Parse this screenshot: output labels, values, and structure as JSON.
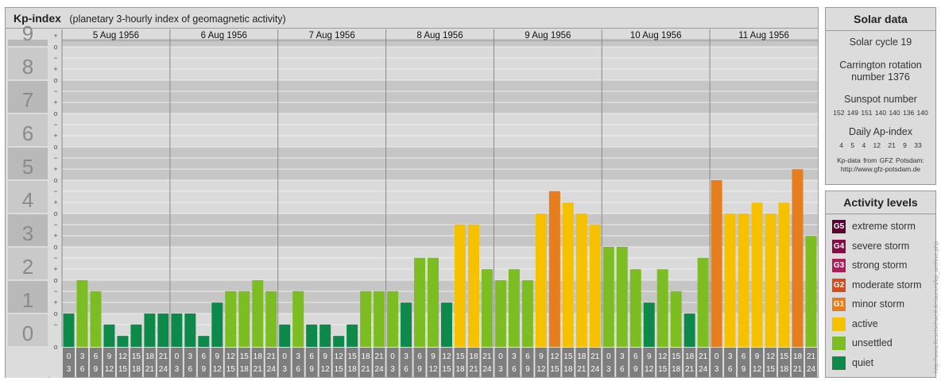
{
  "title": {
    "main": "Kp-index",
    "subtitle": "(planetary 3-hourly index of geomagnetic activity)"
  },
  "solar": {
    "title": "Solar data",
    "cycle": "Solar cycle 19",
    "carrington_line1": "Carrington rotation",
    "carrington_line2": "number 1376",
    "sunspot_label": "Sunspot number",
    "sunspot_values": "152 149 151 140 140 136 140",
    "ap_label": "Daily Ap-index",
    "ap_values": "4 5 4 12 21 9 33",
    "source_line1": "Kp-data from GFZ Potsdam:",
    "source_line2": "http://www.gfz-potsdam.de"
  },
  "activity": {
    "title": "Activity levels",
    "levels": [
      {
        "code": "G5",
        "label": "extreme storm",
        "color": "#5c0030"
      },
      {
        "code": "G4",
        "label": "severe storm",
        "color": "#8a0a45"
      },
      {
        "code": "G3",
        "label": "strong storm",
        "color": "#b01c5a"
      },
      {
        "code": "G2",
        "label": "moderate storm",
        "color": "#d84a1c"
      },
      {
        "code": "G1",
        "label": "minor storm",
        "color": "#e67e1e"
      },
      {
        "code": "",
        "label": "active",
        "color": "#f6c200"
      },
      {
        "code": "",
        "label": "unsettled",
        "color": "#7cbd22"
      },
      {
        "code": "",
        "label": "quiet",
        "color": "#0d8a4a"
      }
    ]
  },
  "watermark": "http://www.fieselschweif.de/aurora/kp_archive.php",
  "chart_data": {
    "type": "bar",
    "title": "Kp-index",
    "ylim": [
      0,
      9
    ],
    "y_ticks": [
      "0",
      "1",
      "2",
      "3",
      "4",
      "5",
      "6",
      "7",
      "8",
      "9"
    ],
    "sub_ticks": [
      "+",
      "o",
      "−"
    ],
    "days": [
      "5 Aug 1956",
      "6 Aug 1956",
      "7 Aug 1956",
      "8 Aug 1956",
      "9 Aug 1956",
      "10 Aug 1956",
      "11 Aug 1956"
    ],
    "hours_start": [
      "0",
      "3",
      "6",
      "9",
      "12",
      "15",
      "18",
      "21"
    ],
    "hours_end": [
      "3",
      "6",
      "9",
      "12",
      "15",
      "18",
      "21",
      "24"
    ],
    "values": [
      1.0,
      2.0,
      1.67,
      0.67,
      0.33,
      0.67,
      1.0,
      1.0,
      1.0,
      1.0,
      0.33,
      1.33,
      1.67,
      1.67,
      2.0,
      1.67,
      0.67,
      1.67,
      0.67,
      0.67,
      0.33,
      0.67,
      1.67,
      1.67,
      1.67,
      1.33,
      2.67,
      2.67,
      1.33,
      3.67,
      3.67,
      2.33,
      2.0,
      2.33,
      2.0,
      4.0,
      4.67,
      4.33,
      4.0,
      3.67,
      3.0,
      3.0,
      2.33,
      1.33,
      2.33,
      1.67,
      1.0,
      2.67,
      5.0,
      4.0,
      4.0,
      4.33,
      4.0,
      4.33,
      5.33,
      3.33
    ],
    "colors": {
      "quiet": "#0d8a4a",
      "unsettled": "#7cbd22",
      "active": "#f6c200",
      "G1": "#e67e1e",
      "G2": "#d84a1c"
    },
    "grid": true
  }
}
